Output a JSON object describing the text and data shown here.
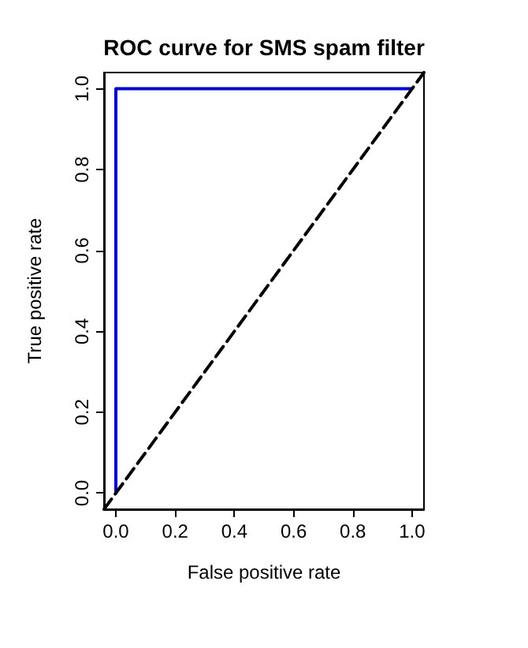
{
  "chart_data": {
    "type": "line",
    "title": "ROC curve for SMS spam filter",
    "xlabel": "False positive rate",
    "ylabel": "True positive rate",
    "xlim": [
      -0.04,
      1.04
    ],
    "ylim": [
      -0.04,
      1.04
    ],
    "xticks": [
      {
        "value": 0,
        "label": "0.0"
      },
      {
        "value": 0.2,
        "label": "0.2"
      },
      {
        "value": 0.4,
        "label": "0.4"
      },
      {
        "value": 0.6,
        "label": "0.6"
      },
      {
        "value": 0.8,
        "label": "0.8"
      },
      {
        "value": 1,
        "label": "1.0"
      }
    ],
    "yticks": [
      {
        "value": 0,
        "label": "0.0"
      },
      {
        "value": 0.2,
        "label": "0.2"
      },
      {
        "value": 0.4,
        "label": "0.4"
      },
      {
        "value": 0.6,
        "label": "0.6"
      },
      {
        "value": 0.8,
        "label": "0.8"
      },
      {
        "value": 1,
        "label": "1.0"
      }
    ],
    "marker": "none",
    "series": [
      {
        "color": "#0000cc",
        "x": [
          0,
          0,
          1
        ],
        "values": [
          0,
          1,
          1
        ],
        "line_style": "solid"
      },
      {
        "color": "#000000",
        "x": [
          -0.04,
          1.04
        ],
        "values": [
          -0.04,
          1.04
        ],
        "line_style": "dashed"
      }
    ]
  }
}
